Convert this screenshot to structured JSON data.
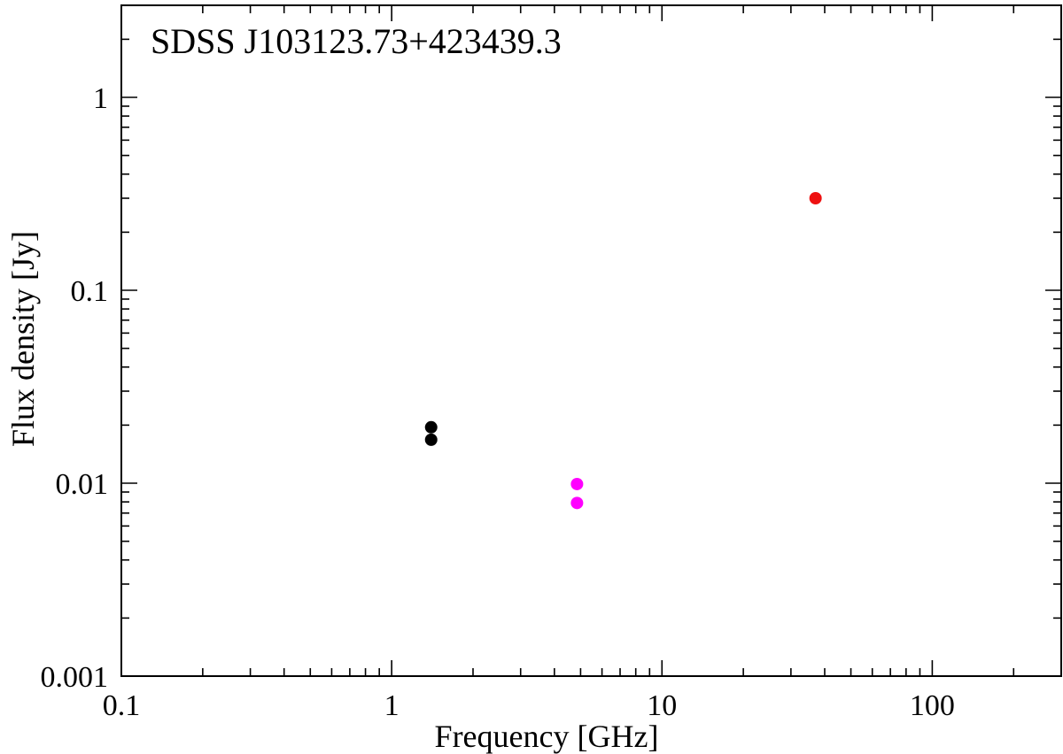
{
  "chart_data": {
    "type": "scatter",
    "title": "SDSS J103123.73+423439.3",
    "xlabel": "Frequency [GHz]",
    "ylabel": "Flux density [Jy]",
    "x_scale": "log",
    "y_scale": "log",
    "xlim": [
      0.1,
      300
    ],
    "ylim": [
      0.001,
      3
    ],
    "x_ticks": [
      {
        "value": 0.1,
        "label": "0.1"
      },
      {
        "value": 1,
        "label": "1"
      },
      {
        "value": 10,
        "label": "10"
      },
      {
        "value": 100,
        "label": "100"
      }
    ],
    "y_ticks": [
      {
        "value": 0.001,
        "label": "0.001"
      },
      {
        "value": 0.01,
        "label": "0.01"
      },
      {
        "value": 0.1,
        "label": "0.1"
      },
      {
        "value": 1,
        "label": "1"
      }
    ],
    "grid": false,
    "legend": "none",
    "points": [
      {
        "x": 1.4,
        "y": 0.0195,
        "color": "#000000"
      },
      {
        "x": 1.4,
        "y": 0.0168,
        "color": "#000000"
      },
      {
        "x": 4.85,
        "y": 0.0099,
        "color": "#ff00ff"
      },
      {
        "x": 4.85,
        "y": 0.0079,
        "color": "#ff00ff"
      },
      {
        "x": 37,
        "y": 0.3,
        "color": "#ee1111"
      }
    ]
  }
}
